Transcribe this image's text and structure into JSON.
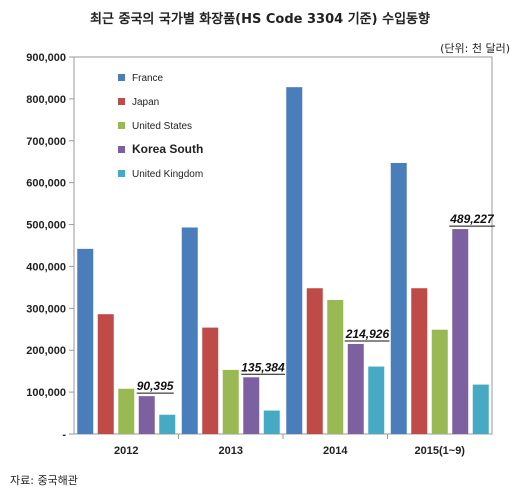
{
  "title": "최근 중국의 국가별 화장품(HS Code 3304 기준) 수입동향",
  "unit": "(단위: 천 달러)",
  "source": "자료: 중국해관",
  "chart_data": {
    "type": "bar",
    "categories": [
      "2012",
      "2013",
      "2014",
      "2015(1~9)"
    ],
    "ylim": [
      0,
      900000
    ],
    "yticks": [
      0,
      100000,
      200000,
      300000,
      400000,
      500000,
      600000,
      700000,
      800000,
      900000
    ],
    "ytick_labels": [
      "-",
      "100,000",
      "200,000",
      "300,000",
      "400,000",
      "500,000",
      "600,000",
      "700,000",
      "800,000",
      "900,000"
    ],
    "series": [
      {
        "name": "France",
        "color": "#4a7ebb",
        "values": [
          442000,
          493000,
          828000,
          647000
        ]
      },
      {
        "name": "Japan",
        "color": "#be4b48",
        "values": [
          286000,
          254000,
          348000,
          348000
        ]
      },
      {
        "name": "United States",
        "color": "#98b954",
        "values": [
          108000,
          153000,
          320000,
          249000
        ]
      },
      {
        "name": "Korea South",
        "color": "#7d60a0",
        "values": [
          90395,
          135384,
          214926,
          489227
        ]
      },
      {
        "name": "United Kingdom",
        "color": "#46aac5",
        "values": [
          46000,
          56000,
          161000,
          118000
        ]
      }
    ],
    "annotations": [
      "90,395",
      "135,384",
      "214,926",
      "489,227"
    ],
    "grid": false,
    "legend": "top-left"
  }
}
